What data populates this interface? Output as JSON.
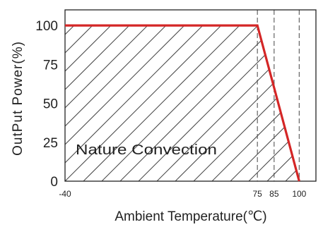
{
  "chart_data": {
    "type": "line",
    "xlabel": "Ambient Temperature(℃)",
    "ylabel": "OutPut Power(%)",
    "xlim": [
      -40,
      110
    ],
    "ylim": [
      0,
      110
    ],
    "x_ticks": [
      {
        "value": -40,
        "label": "-40"
      },
      {
        "value": 75,
        "label": "75"
      },
      {
        "value": 85,
        "label": "85"
      },
      {
        "value": 100,
        "label": "100"
      }
    ],
    "y_ticks": [
      {
        "value": 0,
        "label": "0"
      },
      {
        "value": 25,
        "label": "25"
      },
      {
        "value": 50,
        "label": "50"
      },
      {
        "value": 75,
        "label": "75"
      },
      {
        "value": 100,
        "label": "100"
      }
    ],
    "series": [
      {
        "color": "#d42626",
        "points": [
          {
            "x": -40,
            "y": 100
          },
          {
            "x": 75,
            "y": 100
          },
          {
            "x": 100,
            "y": 0
          }
        ]
      }
    ],
    "vertical_dashed_lines": [
      75,
      85,
      100
    ],
    "hatched_region": true,
    "annotations": [
      {
        "text": "Nature Convection",
        "x": -25,
        "y": 22
      }
    ],
    "grid": false,
    "legend": "none",
    "colors": {
      "curve": "#d42626",
      "axis": "#222222",
      "hatch": "#444444",
      "dashed": "#555555"
    }
  }
}
